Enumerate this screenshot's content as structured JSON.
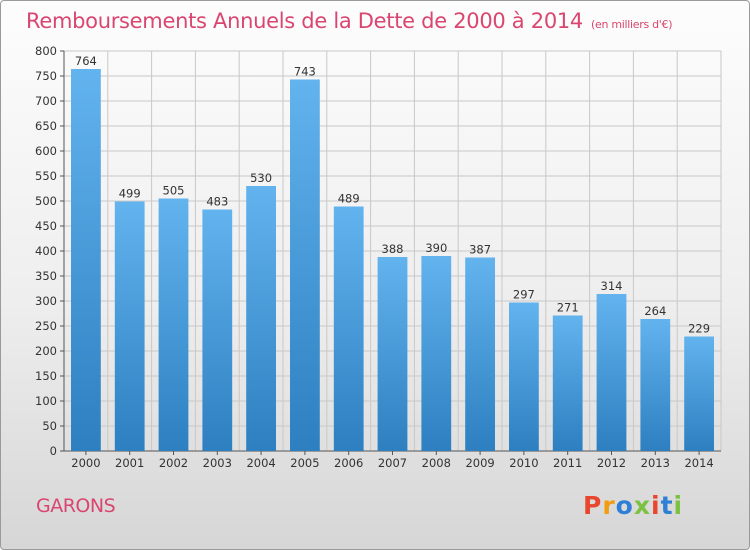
{
  "header": {
    "title": "Remboursements Annuels de la Dette de 2000 à 2014",
    "subtitle": "(en milliers d'€)"
  },
  "footer": {
    "location": "GARONS",
    "brand": "Proxiti",
    "brand_colors": [
      "#e8462e",
      "#f39c12",
      "#2f7fd6",
      "#7cc242",
      "#e8462e",
      "#2f7fd6",
      "#7cc242"
    ]
  },
  "colors": {
    "title": "#d9466f",
    "bar_light": "#62b3ee",
    "bar_dark": "#2d7fc0",
    "grid": "#c8c8c8"
  },
  "chart_data": {
    "type": "bar",
    "title": "Remboursements Annuels de la Dette de 2000 à 2014",
    "unit": "(en milliers d'€)",
    "categories": [
      "2000",
      "2001",
      "2002",
      "2003",
      "2004",
      "2005",
      "2006",
      "2007",
      "2008",
      "2009",
      "2010",
      "2011",
      "2012",
      "2013",
      "2014"
    ],
    "values": [
      764,
      499,
      505,
      483,
      530,
      743,
      489,
      388,
      390,
      387,
      297,
      271,
      314,
      264,
      229
    ],
    "ylim": [
      0,
      800
    ],
    "ytick_step": 50,
    "grid": true
  }
}
